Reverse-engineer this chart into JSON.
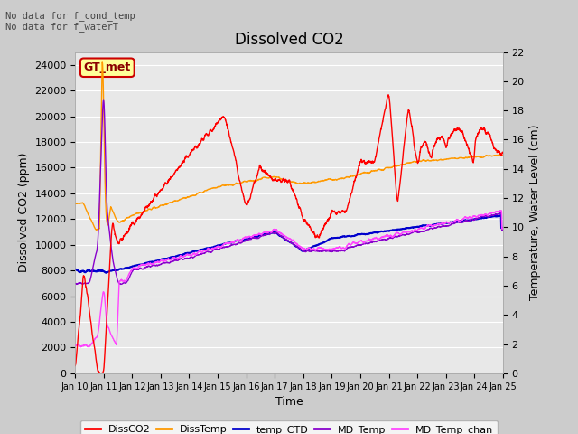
{
  "title": "Dissolved CO2",
  "xlabel": "Time",
  "ylabel_left": "Dissolved CO2 (ppm)",
  "ylabel_right": "Temperature, Water Level (cm)",
  "ylim_left": [
    0,
    25000
  ],
  "ylim_right": [
    0,
    22
  ],
  "yticks_left": [
    0,
    2000,
    4000,
    6000,
    8000,
    10000,
    12000,
    14000,
    16000,
    18000,
    20000,
    22000,
    24000
  ],
  "yticks_right": [
    0,
    2,
    4,
    6,
    8,
    10,
    12,
    14,
    16,
    18,
    20,
    22
  ],
  "xtick_labels": [
    "Jan 10",
    "Jan 11",
    "Jan 12",
    "Jan 13",
    "Jan 14",
    "Jan 15",
    "Jan 16",
    "Jan 17",
    "Jan 18",
    "Jan 19",
    "Jan 20",
    "Jan 21",
    "Jan 22",
    "Jan 23",
    "Jan 24",
    "Jan 25"
  ],
  "colors": {
    "DissCO2": "#ff0000",
    "DissTemp": "#ff9900",
    "temp_CTD": "#0000cc",
    "MD_Temp": "#8800cc",
    "MD_Temp_chan": "#ff44ff"
  },
  "annotation_text": "No data for f_cond_temp\nNo data for f_waterT",
  "legend_label": "GT_met",
  "legend_box_edgecolor": "#cc0000",
  "legend_fill_color": "#ffff99",
  "fig_bg_color": "#cccccc",
  "plot_bg_color": "#e8e8e8",
  "grid_color": "#ffffff"
}
